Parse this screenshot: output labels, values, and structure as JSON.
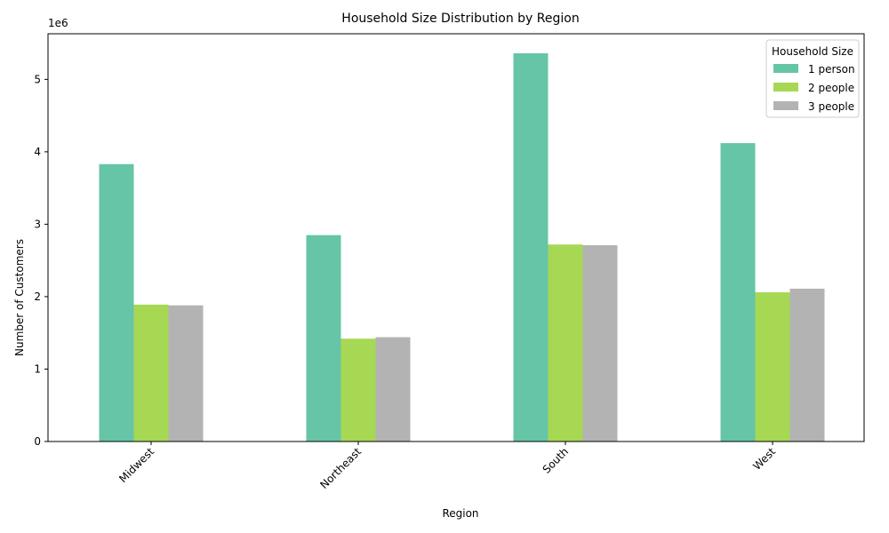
{
  "chart_data": {
    "type": "bar",
    "title": "Household Size Distribution by Region",
    "xlabel": "Region",
    "ylabel": "Number of Customers",
    "offset_label": "1e6",
    "categories": [
      "Midwest",
      "Northeast",
      "South",
      "West"
    ],
    "series": [
      {
        "name": "1 person",
        "color": "#66c5a7",
        "values": [
          3830000,
          2850000,
          5360000,
          4120000
        ]
      },
      {
        "name": "2 people",
        "color": "#a6d854",
        "values": [
          1890000,
          1420000,
          2720000,
          2060000
        ]
      },
      {
        "name": "3 people",
        "color": "#b3b3b3",
        "values": [
          1880000,
          1440000,
          2710000,
          2110000
        ]
      }
    ],
    "yticks": [
      0,
      1,
      2,
      3,
      4,
      5
    ],
    "ytick_scale": 1000000,
    "ylim": [
      0,
      5630000
    ],
    "legend": {
      "title": "Household Size",
      "placement": "top-right"
    },
    "grid": false,
    "xtick_rotation": 45
  }
}
